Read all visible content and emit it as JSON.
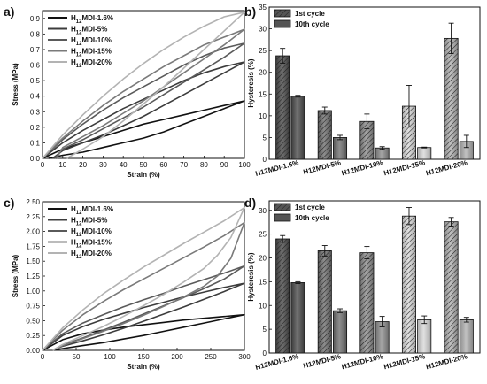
{
  "chart_data": [
    {
      "panel": "a)",
      "type": "line",
      "xlabel": "Strain (%)",
      "ylabel": "Stress (MPa)",
      "xlim": [
        0,
        100
      ],
      "ylim": [
        0,
        0.95
      ],
      "xticks": [
        "0",
        "10",
        "20",
        "30",
        "40",
        "50",
        "60",
        "70",
        "80",
        "90",
        "100"
      ],
      "yticks": [
        "0.0",
        "0.1",
        "0.2",
        "0.3",
        "0.4",
        "0.5",
        "0.6",
        "0.7",
        "0.8",
        "0.9"
      ],
      "legend_position": "top-left",
      "series": [
        {
          "name": "H12MDI-1.6%",
          "color": "#111111",
          "loading": [
            [
              0,
              0
            ],
            [
              10,
              0.06
            ],
            [
              20,
              0.1
            ],
            [
              30,
              0.14
            ],
            [
              40,
              0.18
            ],
            [
              50,
              0.22
            ],
            [
              60,
              0.25
            ],
            [
              70,
              0.28
            ],
            [
              80,
              0.31
            ],
            [
              90,
              0.34
            ],
            [
              100,
              0.37
            ]
          ],
          "unloading": [
            [
              100,
              0.37
            ],
            [
              90,
              0.32
            ],
            [
              80,
              0.27
            ],
            [
              70,
              0.22
            ],
            [
              60,
              0.17
            ],
            [
              50,
              0.13
            ],
            [
              40,
              0.1
            ],
            [
              30,
              0.07
            ],
            [
              20,
              0.04
            ],
            [
              10,
              0.02
            ],
            [
              3,
              0
            ]
          ]
        },
        {
          "name": "H12MDI-5%",
          "color": "#3c3c3c",
          "loading": [
            [
              0,
              0
            ],
            [
              10,
              0.1
            ],
            [
              20,
              0.18
            ],
            [
              30,
              0.25
            ],
            [
              40,
              0.32
            ],
            [
              50,
              0.38
            ],
            [
              60,
              0.44
            ],
            [
              70,
              0.5
            ],
            [
              80,
              0.55
            ],
            [
              90,
              0.59
            ],
            [
              100,
              0.62
            ]
          ],
          "unloading": [
            [
              100,
              0.62
            ],
            [
              90,
              0.55
            ],
            [
              80,
              0.48
            ],
            [
              70,
              0.41
            ],
            [
              60,
              0.34
            ],
            [
              50,
              0.27
            ],
            [
              40,
              0.21
            ],
            [
              30,
              0.15
            ],
            [
              20,
              0.1
            ],
            [
              10,
              0.05
            ],
            [
              5,
              0
            ]
          ]
        },
        {
          "name": "H12MDI-10%",
          "color": "#5a5a5a",
          "loading": [
            [
              0,
              0
            ],
            [
              10,
              0.12
            ],
            [
              20,
              0.22
            ],
            [
              30,
              0.31
            ],
            [
              40,
              0.39
            ],
            [
              50,
              0.46
            ],
            [
              60,
              0.53
            ],
            [
              70,
              0.6
            ],
            [
              80,
              0.66
            ],
            [
              90,
              0.71
            ],
            [
              100,
              0.74
            ]
          ],
          "unloading": [
            [
              100,
              0.74
            ],
            [
              90,
              0.65
            ],
            [
              80,
              0.57
            ],
            [
              70,
              0.49
            ],
            [
              60,
              0.41
            ],
            [
              50,
              0.33
            ],
            [
              40,
              0.26
            ],
            [
              30,
              0.19
            ],
            [
              20,
              0.12
            ],
            [
              10,
              0.06
            ],
            [
              6,
              0
            ]
          ]
        },
        {
          "name": "H12MDI-15%",
          "color": "#7a7a7a",
          "loading": [
            [
              0,
              0
            ],
            [
              10,
              0.13
            ],
            [
              20,
              0.24
            ],
            [
              30,
              0.34
            ],
            [
              40,
              0.43
            ],
            [
              50,
              0.51
            ],
            [
              60,
              0.59
            ],
            [
              70,
              0.66
            ],
            [
              80,
              0.73
            ],
            [
              90,
              0.78
            ],
            [
              100,
              0.83
            ]
          ],
          "unloading": [
            [
              100,
              0.83
            ],
            [
              90,
              0.73
            ],
            [
              80,
              0.64
            ],
            [
              70,
              0.55
            ],
            [
              60,
              0.46
            ],
            [
              50,
              0.37
            ],
            [
              40,
              0.29
            ],
            [
              30,
              0.21
            ],
            [
              20,
              0.14
            ],
            [
              10,
              0.07
            ],
            [
              7,
              0
            ]
          ]
        },
        {
          "name": "H12MDI-20%",
          "color": "#b3b3b3",
          "loading": [
            [
              0,
              0
            ],
            [
              10,
              0.15
            ],
            [
              20,
              0.28
            ],
            [
              30,
              0.4
            ],
            [
              40,
              0.51
            ],
            [
              50,
              0.61
            ],
            [
              60,
              0.7
            ],
            [
              70,
              0.78
            ],
            [
              80,
              0.85
            ],
            [
              90,
              0.91
            ],
            [
              100,
              0.94
            ]
          ],
          "unloading": [
            [
              100,
              0.94
            ],
            [
              90,
              0.82
            ],
            [
              80,
              0.7
            ],
            [
              70,
              0.58
            ],
            [
              60,
              0.46
            ],
            [
              50,
              0.35
            ],
            [
              40,
              0.24
            ],
            [
              30,
              0.14
            ],
            [
              20,
              0.06
            ],
            [
              12,
              0
            ]
          ]
        }
      ]
    },
    {
      "panel": "b)",
      "type": "bar",
      "ylabel": "Hysteresis (%)",
      "ylim": [
        0,
        35
      ],
      "yticks": [
        "0",
        "5",
        "10",
        "15",
        "20",
        "25",
        "30",
        "35"
      ],
      "categories": [
        "H12MDI-1.6%",
        "H12MDI-5%",
        "H12MDI-10%",
        "H12MDI-15%",
        "H12MDI-20%"
      ],
      "colors": [
        "#4a4a4a",
        "#6e6e6e",
        "#8c8c8c",
        "#d8d8d8",
        "#b0b0b0"
      ],
      "legend_position": "top-left",
      "series": [
        {
          "name": "1st cycle",
          "pattern": "hatched",
          "values": [
            23.8,
            11.2,
            8.7,
            12.2,
            27.8
          ],
          "errors": [
            1.7,
            0.8,
            1.7,
            4.8,
            3.5
          ]
        },
        {
          "name": "10th cycle",
          "pattern": "solid",
          "values": [
            14.5,
            5.0,
            2.6,
            2.7,
            4.1
          ],
          "errors": [
            0.2,
            0.5,
            0.3,
            0.1,
            1.4
          ]
        }
      ]
    },
    {
      "panel": "c)",
      "type": "line",
      "xlabel": "Strain (%)",
      "ylabel": "Stress (MPa)",
      "xlim": [
        0,
        300
      ],
      "ylim": [
        0,
        2.5
      ],
      "xticks": [
        "0",
        "50",
        "100",
        "150",
        "200",
        "250",
        "300"
      ],
      "yticks": [
        "0.00",
        "0.25",
        "0.50",
        "0.75",
        "1.00",
        "1.25",
        "1.50",
        "1.75",
        "2.00",
        "2.25",
        "2.50"
      ],
      "legend_position": "top-left",
      "series": [
        {
          "name": "H12MDI-1.6%",
          "color": "#111111",
          "loading": [
            [
              0,
              0
            ],
            [
              30,
              0.18
            ],
            [
              60,
              0.28
            ],
            [
              90,
              0.34
            ],
            [
              120,
              0.39
            ],
            [
              150,
              0.43
            ],
            [
              180,
              0.47
            ],
            [
              210,
              0.51
            ],
            [
              240,
              0.54
            ],
            [
              270,
              0.57
            ],
            [
              300,
              0.6
            ]
          ],
          "unloading": [
            [
              300,
              0.6
            ],
            [
              270,
              0.53
            ],
            [
              240,
              0.46
            ],
            [
              210,
              0.39
            ],
            [
              180,
              0.32
            ],
            [
              150,
              0.25
            ],
            [
              120,
              0.19
            ],
            [
              90,
              0.13
            ],
            [
              60,
              0.08
            ],
            [
              30,
              0.03
            ],
            [
              15,
              0
            ]
          ]
        },
        {
          "name": "H12MDI-5%",
          "color": "#3c3c3c",
          "loading": [
            [
              0,
              0
            ],
            [
              30,
              0.25
            ],
            [
              60,
              0.4
            ],
            [
              90,
              0.52
            ],
            [
              120,
              0.62
            ],
            [
              150,
              0.72
            ],
            [
              180,
              0.81
            ],
            [
              210,
              0.9
            ],
            [
              240,
              0.98
            ],
            [
              270,
              1.06
            ],
            [
              300,
              1.13
            ]
          ],
          "unloading": [
            [
              300,
              1.13
            ],
            [
              270,
              0.99
            ],
            [
              240,
              0.86
            ],
            [
              210,
              0.73
            ],
            [
              180,
              0.61
            ],
            [
              150,
              0.49
            ],
            [
              120,
              0.37
            ],
            [
              90,
              0.26
            ],
            [
              60,
              0.16
            ],
            [
              30,
              0.07
            ],
            [
              15,
              0
            ]
          ]
        },
        {
          "name": "H12MDI-10%",
          "color": "#5a5a5a",
          "loading": [
            [
              0,
              0
            ],
            [
              30,
              0.28
            ],
            [
              60,
              0.46
            ],
            [
              90,
              0.6
            ],
            [
              120,
              0.73
            ],
            [
              150,
              0.85
            ],
            [
              180,
              0.96
            ],
            [
              210,
              1.08
            ],
            [
              240,
              1.19
            ],
            [
              270,
              1.3
            ],
            [
              300,
              1.42
            ]
          ],
          "unloading": [
            [
              300,
              1.42
            ],
            [
              270,
              1.2
            ],
            [
              240,
              1.04
            ],
            [
              210,
              0.89
            ],
            [
              180,
              0.75
            ],
            [
              150,
              0.61
            ],
            [
              120,
              0.47
            ],
            [
              90,
              0.34
            ],
            [
              60,
              0.21
            ],
            [
              30,
              0.09
            ],
            [
              15,
              0
            ]
          ]
        },
        {
          "name": "H12MDI-15%",
          "color": "#7a7a7a",
          "loading": [
            [
              0,
              0
            ],
            [
              30,
              0.34
            ],
            [
              60,
              0.6
            ],
            [
              90,
              0.82
            ],
            [
              120,
              1.02
            ],
            [
              150,
              1.2
            ],
            [
              180,
              1.38
            ],
            [
              210,
              1.56
            ],
            [
              240,
              1.74
            ],
            [
              270,
              1.93
            ],
            [
              300,
              2.15
            ]
          ],
          "unloading": [
            [
              300,
              2.15
            ],
            [
              280,
              1.55
            ],
            [
              260,
              1.25
            ],
            [
              240,
              1.08
            ],
            [
              210,
              0.9
            ],
            [
              180,
              0.74
            ],
            [
              150,
              0.59
            ],
            [
              120,
              0.45
            ],
            [
              90,
              0.32
            ],
            [
              60,
              0.2
            ],
            [
              30,
              0.08
            ],
            [
              15,
              0
            ]
          ]
        },
        {
          "name": "H12MDI-20%",
          "color": "#b3b3b3",
          "loading": [
            [
              0,
              0
            ],
            [
              30,
              0.38
            ],
            [
              60,
              0.68
            ],
            [
              90,
              0.95
            ],
            [
              120,
              1.18
            ],
            [
              150,
              1.4
            ],
            [
              180,
              1.6
            ],
            [
              210,
              1.8
            ],
            [
              240,
              1.99
            ],
            [
              270,
              2.18
            ],
            [
              300,
              2.4
            ]
          ],
          "unloading": [
            [
              300,
              2.4
            ],
            [
              280,
              1.9
            ],
            [
              260,
              1.6
            ],
            [
              240,
              1.38
            ],
            [
              210,
              1.15
            ],
            [
              180,
              0.94
            ],
            [
              150,
              0.75
            ],
            [
              120,
              0.57
            ],
            [
              90,
              0.4
            ],
            [
              60,
              0.25
            ],
            [
              30,
              0.1
            ],
            [
              15,
              0
            ]
          ]
        }
      ]
    },
    {
      "panel": "d)",
      "type": "bar",
      "ylabel": "Hysteresis (%)",
      "ylim": [
        0,
        32
      ],
      "yticks": [
        "0",
        "5",
        "10",
        "15",
        "20",
        "25",
        "30"
      ],
      "categories": [
        "H12MDI-1.6%",
        "H12MDI-5%",
        "H12MDI-10%",
        "H12MDI-15%",
        "H12MDI-20%"
      ],
      "colors": [
        "#4a4a4a",
        "#6e6e6e",
        "#8c8c8c",
        "#d8d8d8",
        "#b0b0b0"
      ],
      "legend_position": "top-left",
      "series": [
        {
          "name": "1st cycle",
          "pattern": "hatched",
          "values": [
            24.0,
            21.5,
            21.1,
            28.8,
            27.6
          ],
          "errors": [
            0.7,
            1.1,
            1.3,
            1.8,
            0.9
          ]
        },
        {
          "name": "10th cycle",
          "pattern": "solid",
          "values": [
            14.8,
            8.9,
            6.6,
            7.0,
            7.0
          ],
          "errors": [
            0.2,
            0.4,
            1.1,
            0.8,
            0.5
          ]
        }
      ]
    }
  ]
}
